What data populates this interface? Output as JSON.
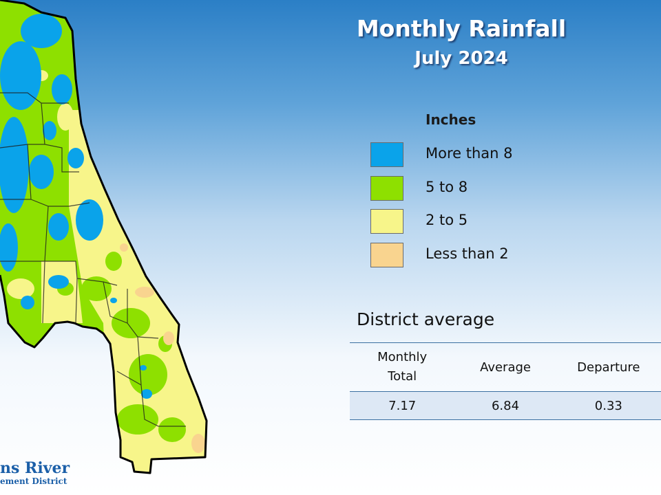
{
  "title": "Monthly Rainfall",
  "subtitle": "July 2024",
  "legend": {
    "title": "Inches",
    "items": [
      {
        "label": "More than 8",
        "color": "#0aa3ea"
      },
      {
        "label": "5 to 8",
        "color": "#8ee000"
      },
      {
        "label": "2 to 5",
        "color": "#f7f58a"
      },
      {
        "label": "Less than 2",
        "color": "#f9d48f"
      }
    ]
  },
  "district": {
    "title": "District average",
    "headers": [
      "Monthly Total",
      "Average",
      "Departure"
    ],
    "values": [
      "7.17",
      "6.84",
      "0.33"
    ]
  },
  "logo": {
    "line1": "ns River",
    "line2": "ement District"
  }
}
